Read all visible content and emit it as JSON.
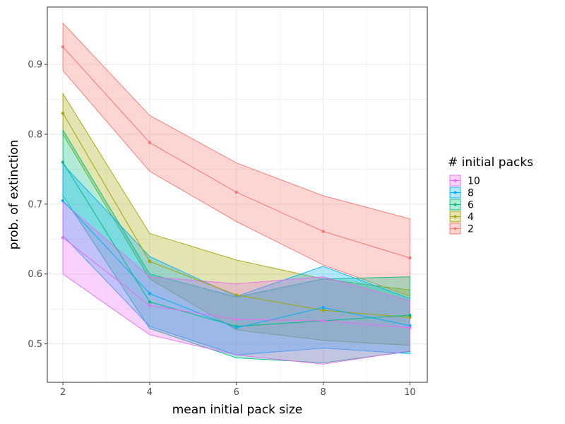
{
  "chart_data": {
    "type": "line",
    "xlabel": "mean initial pack size",
    "ylabel": "prob. of extinction",
    "x": [
      2,
      4,
      6,
      8,
      10
    ],
    "xlim": [
      1.64,
      10.4
    ],
    "ylim": [
      0.445,
      0.982
    ],
    "x_ticks": [
      2,
      4,
      6,
      8,
      10
    ],
    "y_ticks": [
      0.5,
      0.6,
      0.7,
      0.8,
      0.9
    ],
    "y_tick_labels": [
      "0.5",
      "0.6",
      "0.7",
      "0.8",
      "0.9"
    ],
    "grid": true,
    "legend": {
      "title": "# initial packs",
      "placement": "right"
    },
    "series": [
      {
        "name": "2",
        "color": "#F8766D",
        "values": [
          0.925,
          0.788,
          0.717,
          0.661,
          0.623
        ],
        "lower": [
          0.891,
          0.747,
          0.675,
          0.613,
          0.568
        ],
        "upper": [
          0.959,
          0.827,
          0.759,
          0.712,
          0.679
        ]
      },
      {
        "name": "4",
        "color": "#A3A500",
        "values": [
          0.83,
          0.618,
          0.57,
          0.548,
          0.538
        ],
        "lower": [
          0.8,
          0.593,
          0.52,
          0.505,
          0.498
        ],
        "upper": [
          0.858,
          0.658,
          0.62,
          0.593,
          0.577
        ]
      },
      {
        "name": "6",
        "color": "#00BF7D",
        "values": [
          0.76,
          0.56,
          0.525,
          0.533,
          0.541
        ],
        "lower": [
          0.712,
          0.522,
          0.48,
          0.473,
          0.489
        ],
        "upper": [
          0.806,
          0.6,
          0.567,
          0.593,
          0.596
        ]
      },
      {
        "name": "8",
        "color": "#00B0F6",
        "values": [
          0.705,
          0.572,
          0.523,
          0.552,
          0.526
        ],
        "lower": [
          0.655,
          0.525,
          0.484,
          0.494,
          0.486
        ],
        "upper": [
          0.757,
          0.625,
          0.568,
          0.611,
          0.565
        ]
      },
      {
        "name": "10",
        "color": "#E76BF3",
        "values": [
          0.652,
          0.555,
          0.535,
          0.533,
          0.523
        ],
        "lower": [
          0.6,
          0.513,
          0.484,
          0.471,
          0.49
        ],
        "upper": [
          0.703,
          0.596,
          0.586,
          0.596,
          0.562
        ]
      }
    ]
  }
}
